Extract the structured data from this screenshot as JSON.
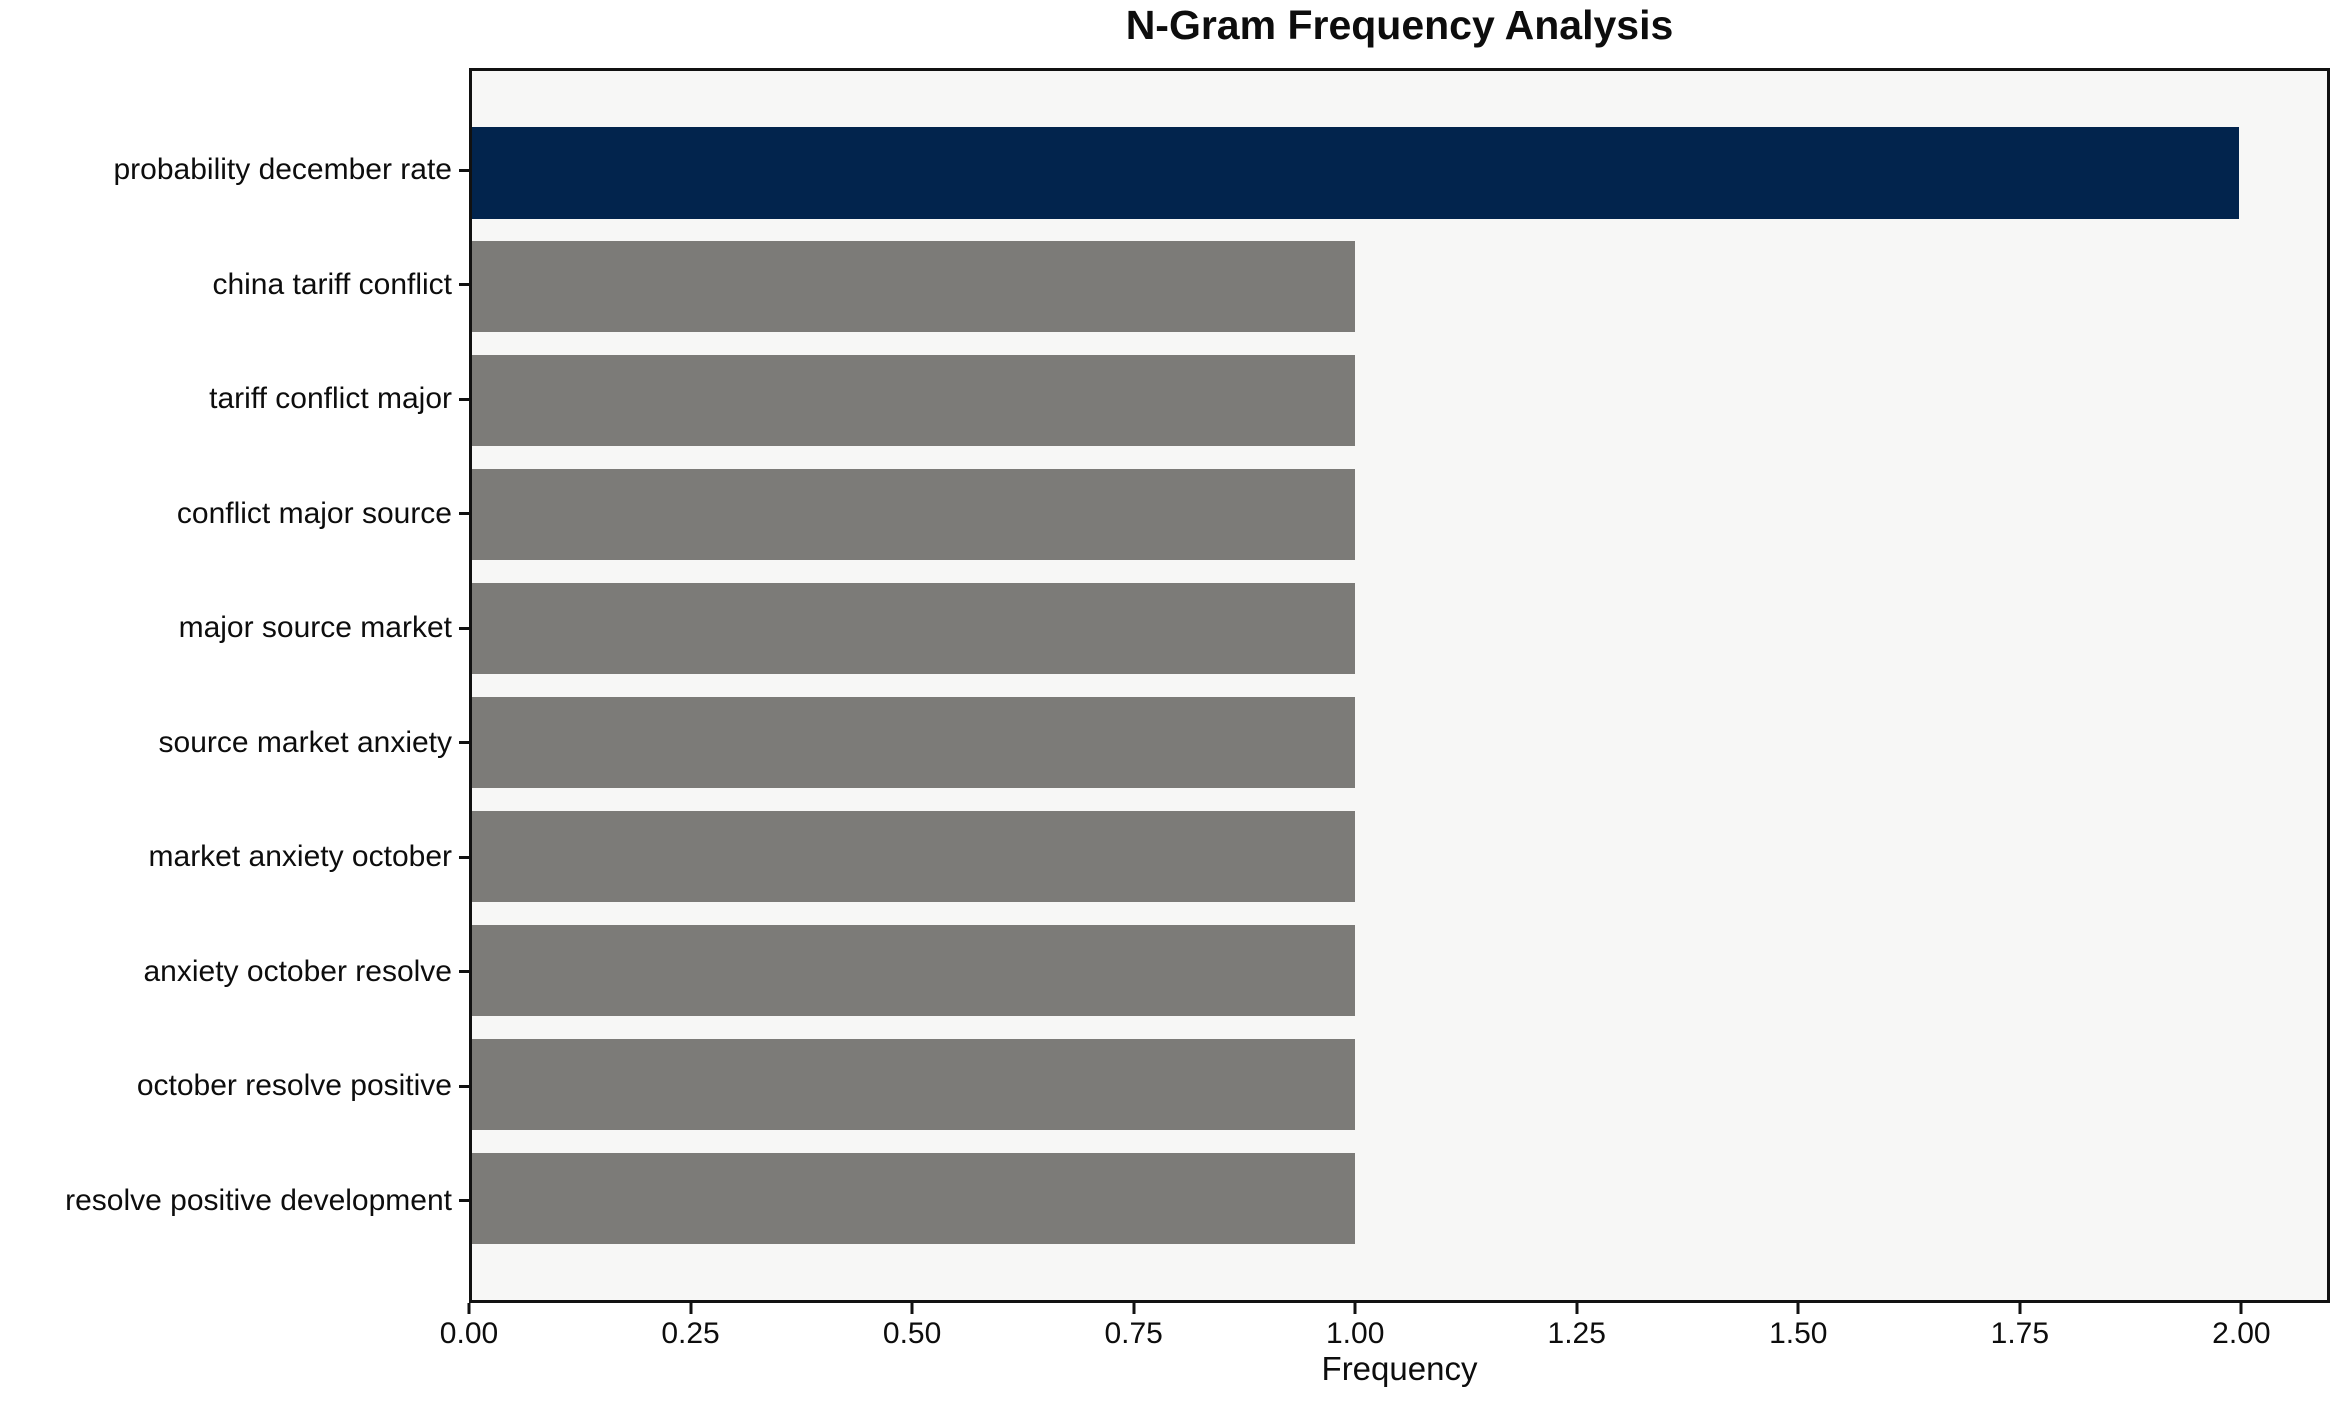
{
  "chart_data": {
    "type": "bar",
    "orientation": "horizontal",
    "title": "N-Gram Frequency Analysis",
    "xlabel": "Frequency",
    "ylabel": "",
    "categories": [
      "probability december rate",
      "china tariff conflict",
      "tariff conflict major",
      "conflict major source",
      "major source market",
      "source market anxiety",
      "market anxiety october",
      "anxiety october resolve",
      "october resolve positive",
      "resolve positive development"
    ],
    "values": [
      2,
      1,
      1,
      1,
      1,
      1,
      1,
      1,
      1,
      1
    ],
    "bar_colors": [
      "#02244d",
      "#7c7b78",
      "#7c7b78",
      "#7c7b78",
      "#7c7b78",
      "#7c7b78",
      "#7c7b78",
      "#7c7b78",
      "#7c7b78",
      "#7c7b78"
    ],
    "highlight_color": "#02244d",
    "default_bar_color": "#7c7b78",
    "plot_background": "#f7f7f6",
    "spine_color": "#111111",
    "xlim": [
      0,
      2.1
    ],
    "xtick_values": [
      0.0,
      0.25,
      0.5,
      0.75,
      1.0,
      1.25,
      1.5,
      1.75,
      2.0
    ],
    "xtick_labels": [
      "0.00",
      "0.25",
      "0.50",
      "0.75",
      "1.00",
      "1.25",
      "1.50",
      "1.75",
      "2.00"
    ],
    "grid": false,
    "legend": null,
    "bar_relative_height": 0.8
  }
}
